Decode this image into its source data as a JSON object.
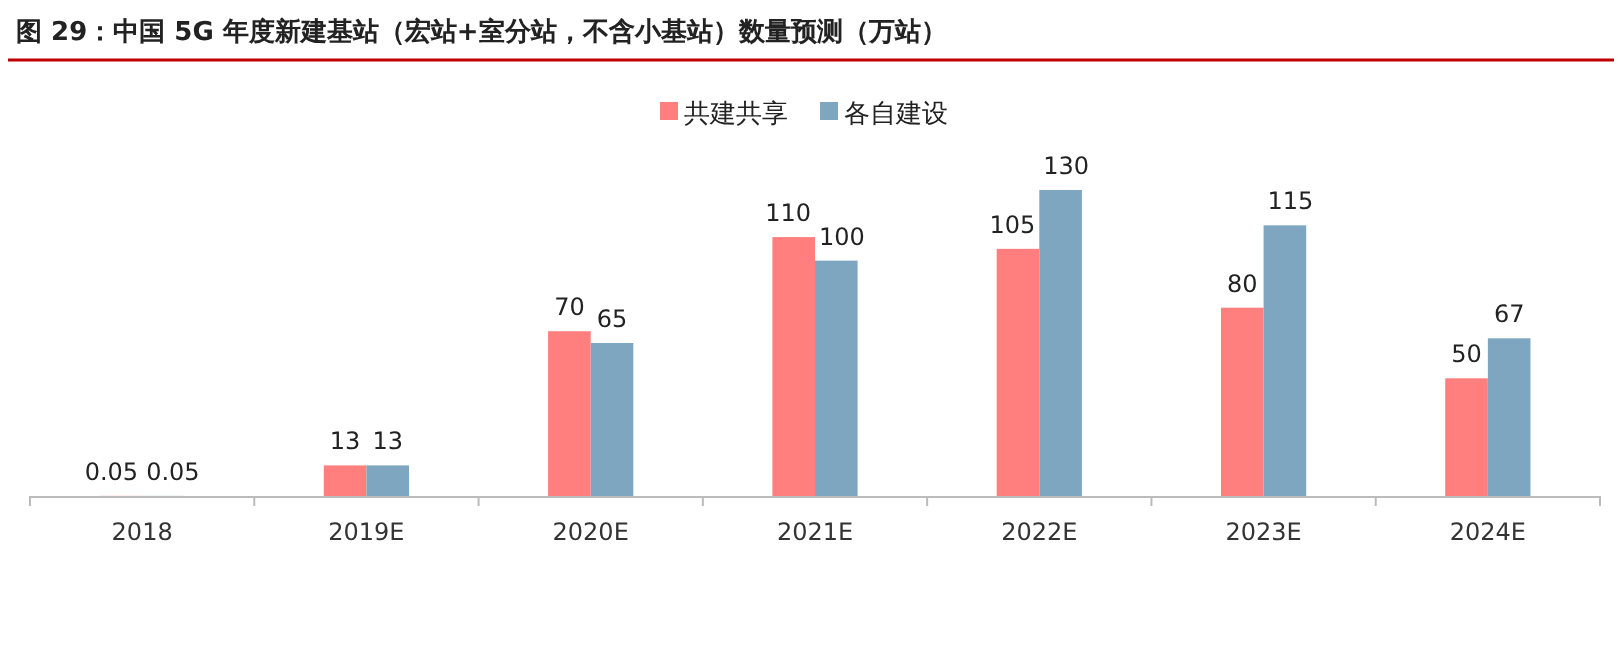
{
  "chart_data": {
    "type": "bar",
    "title": "图 29：中国 5G 年度新建基站（宏站+室分站，不含小基站）数量预测（万站）",
    "categories": [
      "2018",
      "2019E",
      "2020E",
      "2021E",
      "2022E",
      "2023E",
      "2024E"
    ],
    "series": [
      {
        "name": "共建共享",
        "color": "#ff7f7f",
        "values": [
          0.05,
          13,
          70,
          110,
          105,
          80,
          50
        ]
      },
      {
        "name": "各自建设",
        "color": "#7fa6c0",
        "values": [
          0.05,
          13,
          65,
          100,
          130,
          115,
          67
        ]
      }
    ],
    "data_labels": true,
    "legend": "top"
  }
}
